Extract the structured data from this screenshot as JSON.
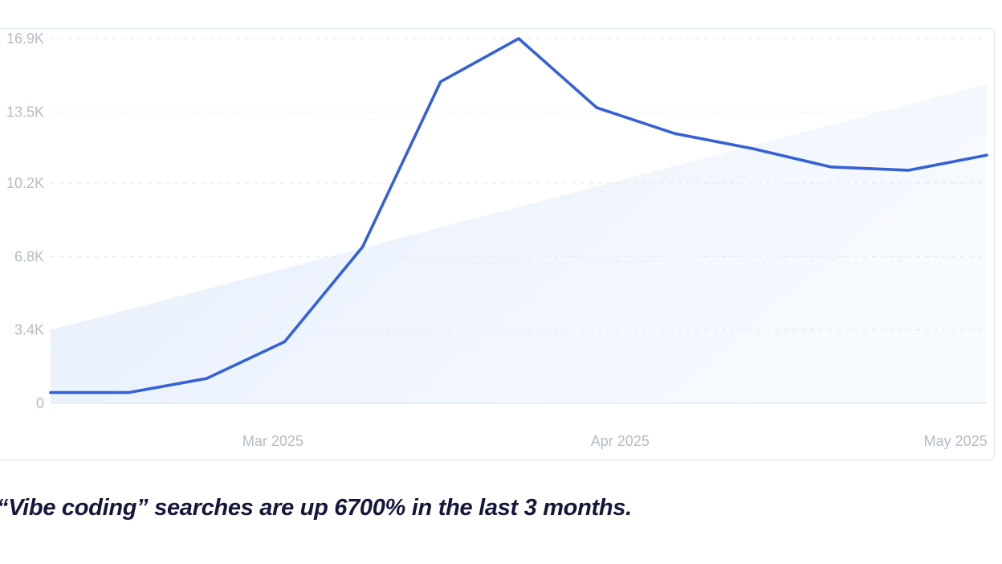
{
  "chart_data": {
    "type": "line",
    "title": "",
    "xlabel": "",
    "ylabel": "",
    "ylim": [
      0,
      16900
    ],
    "y_ticks": [
      {
        "value": 0,
        "label": "0"
      },
      {
        "value": 3400,
        "label": "3.4K"
      },
      {
        "value": 6800,
        "label": "6.8K"
      },
      {
        "value": 10200,
        "label": "10.2K"
      },
      {
        "value": 13500,
        "label": "13.5K"
      },
      {
        "value": 16900,
        "label": "16.9K"
      }
    ],
    "x_ticks": [
      {
        "index": 2.85,
        "label": "Mar 2025"
      },
      {
        "index": 7.3,
        "label": "Apr 2025"
      },
      {
        "index": 11.6,
        "label": "May 2025"
      }
    ],
    "grid": true,
    "legend": "none",
    "series": [
      {
        "color": "#3561d6",
        "values": [
          500,
          500,
          1150,
          2850,
          7250,
          14900,
          16900,
          13700,
          12500,
          11800,
          10950,
          10800,
          11500
        ]
      }
    ],
    "trend": {
      "color": "#e8f0fc",
      "start": 3400,
      "end": 14800
    }
  },
  "caption": "“Vibe coding” searches are up 6700% in the last 3 months."
}
